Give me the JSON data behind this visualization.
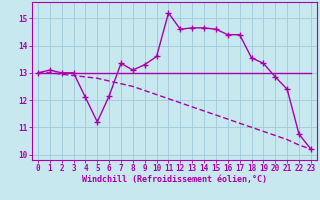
{
  "background_color": "#c8e8f0",
  "grid_color": "#a0c8d8",
  "line_color": "#aa00aa",
  "xlim": [
    -0.5,
    23.5
  ],
  "ylim": [
    9.8,
    15.6
  ],
  "yticks": [
    10,
    11,
    12,
    13,
    14,
    15
  ],
  "xticks": [
    0,
    1,
    2,
    3,
    4,
    5,
    6,
    7,
    8,
    9,
    10,
    11,
    12,
    13,
    14,
    15,
    16,
    17,
    18,
    19,
    20,
    21,
    22,
    23
  ],
  "xlabel": "Windchill (Refroidissement éolien,°C)",
  "xlabel_fontsize": 6.0,
  "tick_fontsize": 5.5,
  "flat_x": [
    0,
    1,
    2,
    3,
    4,
    5,
    6,
    7,
    8,
    9,
    10,
    11,
    12,
    13,
    14,
    15,
    16,
    17,
    18,
    19,
    20,
    21,
    22,
    23
  ],
  "flat_y": [
    13.0,
    13.0,
    13.0,
    13.0,
    13.0,
    13.0,
    13.0,
    13.0,
    13.0,
    13.0,
    13.0,
    13.0,
    13.0,
    13.0,
    13.0,
    13.0,
    13.0,
    13.0,
    13.0,
    13.0,
    13.0,
    13.0,
    13.0,
    13.0
  ],
  "jagged_x": [
    0,
    1,
    2,
    3,
    4,
    5,
    6,
    7,
    8,
    9,
    10,
    11,
    12,
    13,
    14,
    15,
    16,
    17,
    18,
    19,
    20,
    21,
    22,
    23
  ],
  "jagged_y": [
    13.0,
    13.1,
    13.0,
    13.0,
    12.1,
    11.2,
    12.15,
    13.35,
    13.1,
    13.3,
    13.6,
    15.2,
    14.6,
    14.65,
    14.65,
    14.6,
    14.4,
    14.4,
    13.55,
    13.35,
    12.85,
    12.4,
    10.75,
    10.2
  ],
  "dashed_x": [
    0,
    1,
    2,
    3,
    4,
    5,
    6,
    7,
    8,
    9,
    10,
    11,
    12,
    13,
    14,
    15,
    16,
    17,
    18,
    19,
    20,
    21,
    22,
    23
  ],
  "dashed_y": [
    13.0,
    13.0,
    12.95,
    12.9,
    12.85,
    12.8,
    12.7,
    12.6,
    12.5,
    12.35,
    12.2,
    12.05,
    11.9,
    11.75,
    11.6,
    11.45,
    11.3,
    11.15,
    11.0,
    10.85,
    10.7,
    10.55,
    10.35,
    10.2
  ]
}
